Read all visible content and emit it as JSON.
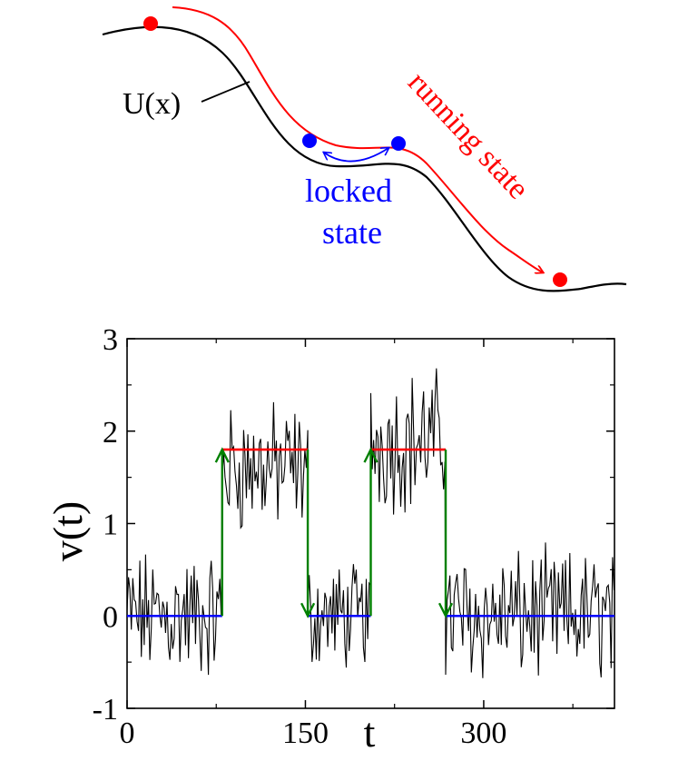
{
  "diagram": {
    "potential_label": "U(x)",
    "locked_label_line1": "locked",
    "locked_label_line2": "state",
    "running_label": "running state",
    "colors": {
      "potential": "#000000",
      "running": "#ff0000",
      "locked": "#0000ff",
      "particle_red": "#ff0000",
      "particle_blue": "#0000ff"
    }
  },
  "chart_data": {
    "type": "line",
    "xlabel": "t",
    "ylabel": "v(t)",
    "xlim": [
      0,
      410
    ],
    "ylim": [
      -1,
      3
    ],
    "xticks": [
      0,
      150,
      300
    ],
    "xtick_labels": [
      "0",
      "150",
      "300"
    ],
    "yticks": [
      -1,
      0,
      1,
      2,
      3
    ],
    "ytick_labels": [
      "-1",
      "0",
      "1",
      "2",
      "3"
    ],
    "grid": false,
    "series": [
      {
        "color": "#000000",
        "style": "noisy",
        "segments": [
          {
            "t": [
              0,
              80
            ],
            "mean": 0.0,
            "amp": 0.55
          },
          {
            "t": [
              80,
              152
            ],
            "mean": 1.6,
            "amp": 0.55
          },
          {
            "t": [
              152,
              205
            ],
            "mean": 0.0,
            "amp": 0.45
          },
          {
            "t": [
              205,
              268
            ],
            "mean": 1.9,
            "amp": 0.6
          },
          {
            "t": [
              268,
              410
            ],
            "mean": 0.0,
            "amp": 0.55
          }
        ]
      },
      {
        "color": "#0000ff",
        "style": "locked",
        "segments": [
          {
            "t": [
              0,
              80
            ],
            "v": 0
          },
          {
            "t": [
              152,
              205
            ],
            "v": 0
          },
          {
            "t": [
              268,
              410
            ],
            "v": 0
          }
        ]
      },
      {
        "color": "#ff0000",
        "style": "running",
        "segments": [
          {
            "t": [
              80,
              152
            ],
            "v": 1.8
          },
          {
            "t": [
              205,
              268
            ],
            "v": 1.8
          }
        ]
      },
      {
        "color": "#008000",
        "style": "transitions",
        "arrows": [
          {
            "t": 80,
            "from": 0,
            "to": 1.8
          },
          {
            "t": 152,
            "from": 1.8,
            "to": 0
          },
          {
            "t": 205,
            "from": 0,
            "to": 1.8
          },
          {
            "t": 268,
            "from": 1.8,
            "to": 0
          }
        ]
      }
    ]
  }
}
